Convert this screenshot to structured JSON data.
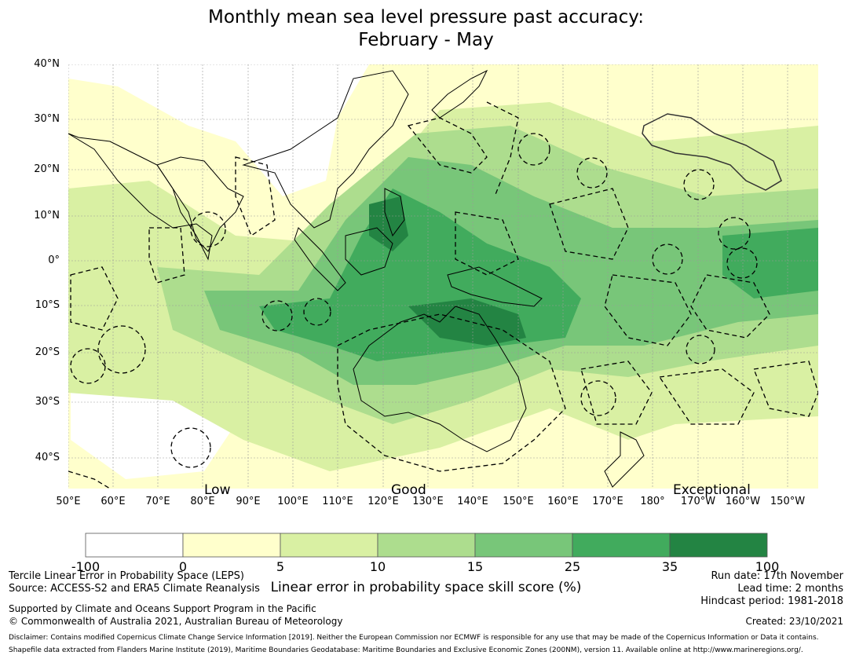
{
  "title": {
    "line1": "Monthly mean sea level pressure past accuracy:",
    "line2": "February - May"
  },
  "map": {
    "lat_labels": [
      "40°N",
      "30°N",
      "20°N",
      "10°N",
      "0°",
      "10°S",
      "20°S",
      "30°S",
      "40°S"
    ],
    "lon_labels": [
      "50°E",
      "60°E",
      "70°E",
      "80°E",
      "90°E",
      "100°E",
      "110°E",
      "120°E",
      "130°E",
      "140°E",
      "150°E",
      "160°E",
      "170°E",
      "180°",
      "170°W",
      "160°W",
      "150°W"
    ],
    "band_labels": {
      "low": "Low",
      "good": "Good",
      "exceptional": "Exceptional"
    },
    "ocean_color": "#ffffcc",
    "grid_color": "#999999"
  },
  "colorbar": {
    "ticks": [
      "-100",
      "0",
      "5",
      "10",
      "15",
      "25",
      "35",
      "100"
    ],
    "colors": [
      "#ffffff",
      "#ffffcc",
      "#d9f0a3",
      "#addd8e",
      "#78c679",
      "#41ab5d",
      "#238443"
    ],
    "title": "Linear error in probability space skill score (%)"
  },
  "footer": {
    "left_line1": "Tercile Linear Error in Probability Space (LEPS)",
    "left_line2": "Source: ACCESS-S2 and ERA5 Climate Reanalysis",
    "supported_line1": "Supported by Climate and Oceans Support Program in the Pacific",
    "supported_line2": "© Commonwealth of Australia 2021, Australian Bureau of Meteorology",
    "run_date": "Run date: 17th November",
    "lead_time": "Lead time: 2 months",
    "hindcast": "Hindcast period: 1981-2018",
    "created": "Created: 23/10/2021",
    "disclaimer": "Disclaimer: Contains modified Copernicus Climate Change Service Information [2019]. Neither the European Commission nor ECMWF is responsible for any use that may be made of the Copernicus Information or Data it contains.",
    "shapefile": "Shapefile data extracted from Flanders Marine Institute (2019), Maritime Boundaries Geodatabase: Maritime Boundaries and Exclusive Economic Zones (200NM), version 11. Available online at http://www.marineregions.org/."
  }
}
